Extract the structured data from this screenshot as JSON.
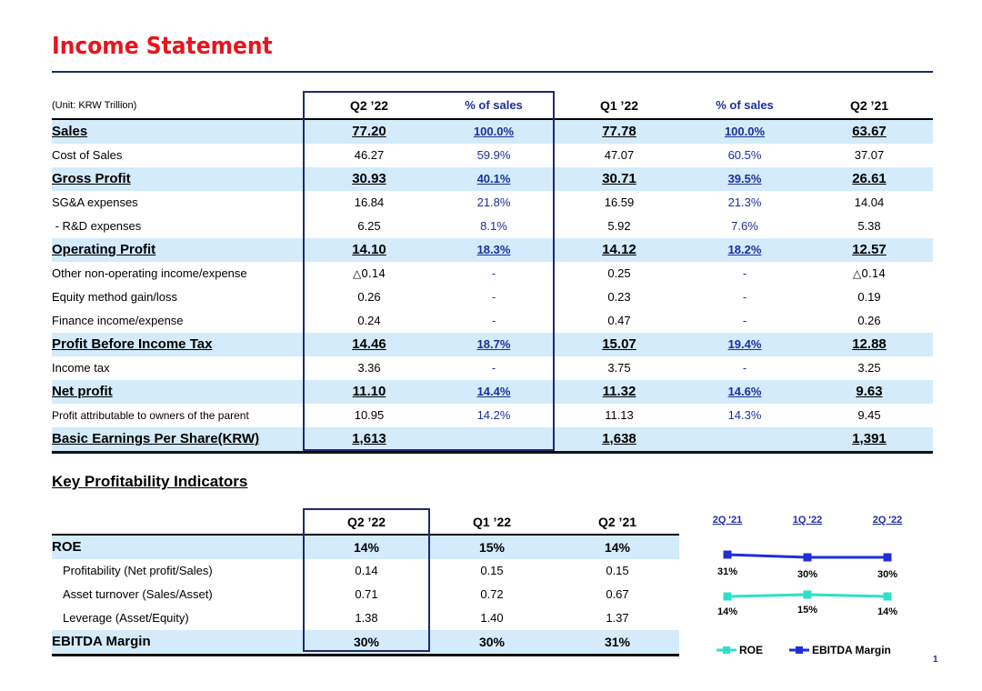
{
  "title": "Income Statement",
  "unit_label": "(Unit: KRW Trillion)",
  "columns": [
    "Q2 ’22",
    "% of sales",
    "Q1 ’22",
    "% of sales",
    "Q2 ’21"
  ],
  "rows": [
    {
      "label": "Sales",
      "v": [
        "77.20",
        "100.0%",
        "77.78",
        "100.0%",
        "63.67"
      ],
      "bold": true,
      "hl": true
    },
    {
      "label": "Cost of Sales",
      "v": [
        "46.27",
        "59.9%",
        "47.07",
        "60.5%",
        "37.07"
      ],
      "bold": false,
      "hl": false
    },
    {
      "label": "Gross Profit",
      "v": [
        "30.93",
        "40.1%",
        "30.71",
        "39.5%",
        "26.61"
      ],
      "bold": true,
      "hl": true
    },
    {
      "label": "SG&A expenses",
      "v": [
        "16.84",
        "21.8%",
        "16.59",
        "21.3%",
        "14.04"
      ],
      "bold": false,
      "hl": false
    },
    {
      "label": " - R&D expenses",
      "v": [
        "6.25",
        "8.1%",
        "5.92",
        "7.6%",
        "5.38"
      ],
      "bold": false,
      "hl": false
    },
    {
      "label": "Operating Profit",
      "v": [
        "14.10",
        "18.3%",
        "14.12",
        "18.2%",
        "12.57"
      ],
      "bold": true,
      "hl": true
    },
    {
      "label": "Other non-operating income/expense",
      "v": [
        "△0.14",
        "-",
        "0.25",
        "-",
        "△0.14"
      ],
      "bold": false,
      "hl": false
    },
    {
      "label": "Equity method gain/loss",
      "v": [
        "0.26",
        "-",
        "0.23",
        "-",
        "0.19"
      ],
      "bold": false,
      "hl": false
    },
    {
      "label": "Finance income/expense",
      "v": [
        "0.24",
        "-",
        "0.47",
        "-",
        "0.26"
      ],
      "bold": false,
      "hl": false
    },
    {
      "label": "Profit Before Income Tax",
      "v": [
        "14.46",
        "18.7%",
        "15.07",
        "19.4%",
        "12.88"
      ],
      "bold": true,
      "hl": true
    },
    {
      "label": "Income tax",
      "v": [
        "3.36",
        "-",
        "3.75",
        "-",
        "3.25"
      ],
      "bold": false,
      "hl": false
    },
    {
      "label": "Net profit",
      "v": [
        "11.10",
        "14.4%",
        "11.32",
        "14.6%",
        "9.63"
      ],
      "bold": true,
      "hl": true
    },
    {
      "label": "Profit attributable to owners of the parent",
      "v": [
        "10.95",
        "14.2%",
        "11.13",
        "14.3%",
        "9.45"
      ],
      "bold": false,
      "hl": false,
      "small": true
    },
    {
      "label": "Basic Earnings Per Share(KRW)",
      "v": [
        "1,613",
        "",
        "1,638",
        "",
        "1,391"
      ],
      "bold": true,
      "hl": true
    }
  ],
  "kpi": {
    "title": "Key Profitability Indicators",
    "columns": [
      "Q2 ’22",
      "Q1 ’22",
      "Q2 ’21"
    ],
    "rows": [
      {
        "label": "ROE",
        "v": [
          "14%",
          "15%",
          "14%"
        ],
        "bold": true,
        "hl": true,
        "indent": false
      },
      {
        "label": "Profitability (Net profit/Sales)",
        "v": [
          "0.14",
          "0.15",
          "0.15"
        ],
        "bold": false,
        "hl": false,
        "indent": true
      },
      {
        "label": "Asset turnover (Sales/Asset)",
        "v": [
          "0.71",
          "0.72",
          "0.67"
        ],
        "bold": false,
        "hl": false,
        "indent": true
      },
      {
        "label": "Leverage (Asset/Equity)",
        "v": [
          "1.38",
          "1.40",
          "1.37"
        ],
        "bold": false,
        "hl": false,
        "indent": true
      },
      {
        "label": "EBITDA Margin",
        "v": [
          "30%",
          "30%",
          "31%"
        ],
        "bold": true,
        "hl": true,
        "indent": false
      }
    ]
  },
  "chart_data": {
    "type": "line",
    "categories": [
      "2Q '21",
      "1Q '22",
      "2Q '22"
    ],
    "series": [
      {
        "name": "EBITDA Margin",
        "values": [
          31,
          30,
          30
        ],
        "labels": [
          "31%",
          "30%",
          "30%"
        ],
        "color": "#1f2fd6"
      },
      {
        "name": "ROE",
        "values": [
          14,
          15,
          14
        ],
        "labels": [
          "14%",
          "15%",
          "14%"
        ],
        "color": "#2ee0c8"
      }
    ],
    "legend": "bottom"
  },
  "page_number": "1"
}
